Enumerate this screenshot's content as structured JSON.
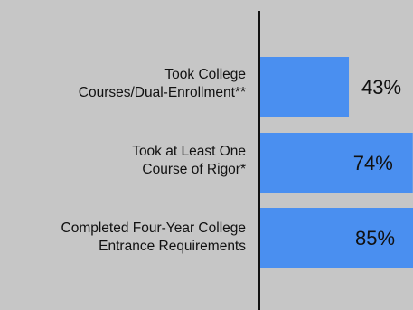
{
  "chart_data": {
    "type": "bar",
    "orientation": "horizontal",
    "categories": [
      [
        "Took College",
        "Courses/Dual-Enrollment**"
      ],
      [
        "Took at Least One",
        "Course of Rigor*"
      ],
      [
        "Completed Four-Year College",
        "Entrance Requirements"
      ]
    ],
    "values": [
      43,
      74,
      85
    ],
    "value_labels": [
      "43%",
      "74%",
      "85%"
    ],
    "xlim": [
      0,
      100
    ],
    "bar_color": "#4a8ff0",
    "background_color": "#c6c6c6",
    "grid": false,
    "legend": "none"
  }
}
